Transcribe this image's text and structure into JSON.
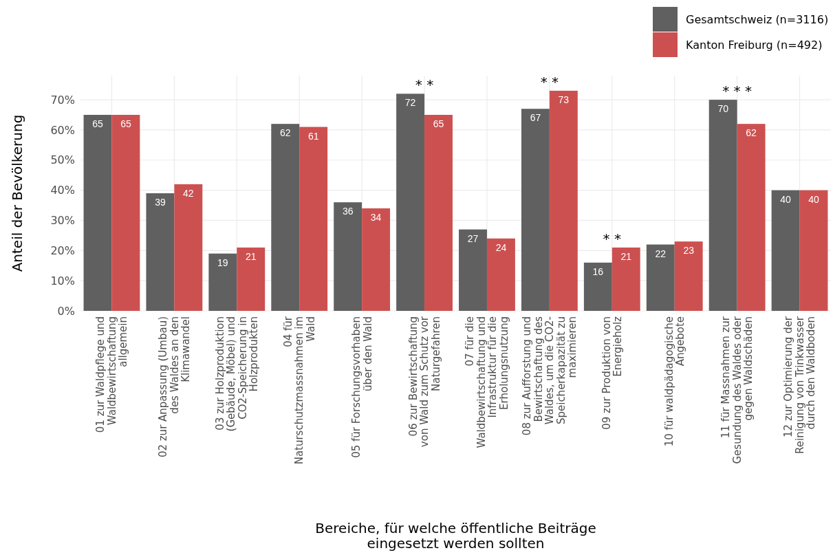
{
  "chart_data": {
    "type": "bar",
    "xlabel": "Bereiche, für welche öffentliche Beiträge\neingesetzt werden sollten",
    "ylabel": "Anteil der Bevölkerung",
    "categories": [
      "01 zur Waldpflege und\nWaldbewirtschaftung\nallgemein",
      "02 zur Anpassung (Umbau)\ndes Waldes an den\nKlimawandel",
      "03 zur Holzproduktion\n(Gebäude, Möbel) und\nCO2-Speicherung in\nHolzprodukten",
      "04 für\nNaturschutzmassnahmen im\nWald",
      "05 für Forschungsvorhaben\nüber den Wald",
      "06 zur Bewirtschaftung\nvon Wald zum Schutz vor\nNaturgefahren",
      "07 für die\nWaldbewirtschaftung und\nInfrastruktur für die\nErholungsnutzung",
      "08 zur Aufforstung und\nBewirtschaftung des\nWaldes, um die CO2-\nSpeicherkapazität zu\nmaximieren",
      "09 zur Produktion von\nEnergieholz",
      "10 für waldpädagogische\nAngebote",
      "11 für Massnahmen zur\nGesundung des Waldes oder\ngegen Waldschäden",
      "12 zur Optimierung der\nReinigung von Trinkwasser\ndurch den Waldboden"
    ],
    "series": [
      {
        "name": "Gesamtschweiz (n=3116)",
        "color": "#606060",
        "values": [
          65,
          39,
          19,
          62,
          36,
          72,
          27,
          67,
          16,
          22,
          70,
          40
        ]
      },
      {
        "name": "Kanton Freiburg (n=492)",
        "color": "#cd5050",
        "values": [
          65,
          42,
          21,
          61,
          34,
          65,
          24,
          73,
          21,
          23,
          62,
          40
        ]
      }
    ],
    "data_labels": true,
    "ylim": [
      0,
      78
    ],
    "yticks": [
      {
        "value": 0,
        "label": "0%"
      },
      {
        "value": 10,
        "label": "10%"
      },
      {
        "value": 20,
        "label": "20%"
      },
      {
        "value": 30,
        "label": "30%"
      },
      {
        "value": 40,
        "label": "40%"
      },
      {
        "value": 50,
        "label": "50%"
      },
      {
        "value": 60,
        "label": "60%"
      },
      {
        "value": 70,
        "label": "70%"
      }
    ],
    "grid": true,
    "legend": "top right",
    "annotations": [
      {
        "text": "* *",
        "x": "06 zur Bewirtschaftung\nvon Wald zum Schutz vor\nNaturgefahren",
        "y": 72
      },
      {
        "text": "* *",
        "x": "08 zur Aufforstung und\nBewirtschaftung des\nWaldes, um die CO2-\nSpeicherkapazität zu\nmaximieren",
        "y": 73
      },
      {
        "text": "* *",
        "x": "09 zur Produktion von\nEnergieholz",
        "y": 21
      },
      {
        "text": "* * *",
        "x": "11 für Massnahmen zur\nGesundung des Waldes oder\ngegen Waldschäden",
        "y": 70
      }
    ]
  }
}
